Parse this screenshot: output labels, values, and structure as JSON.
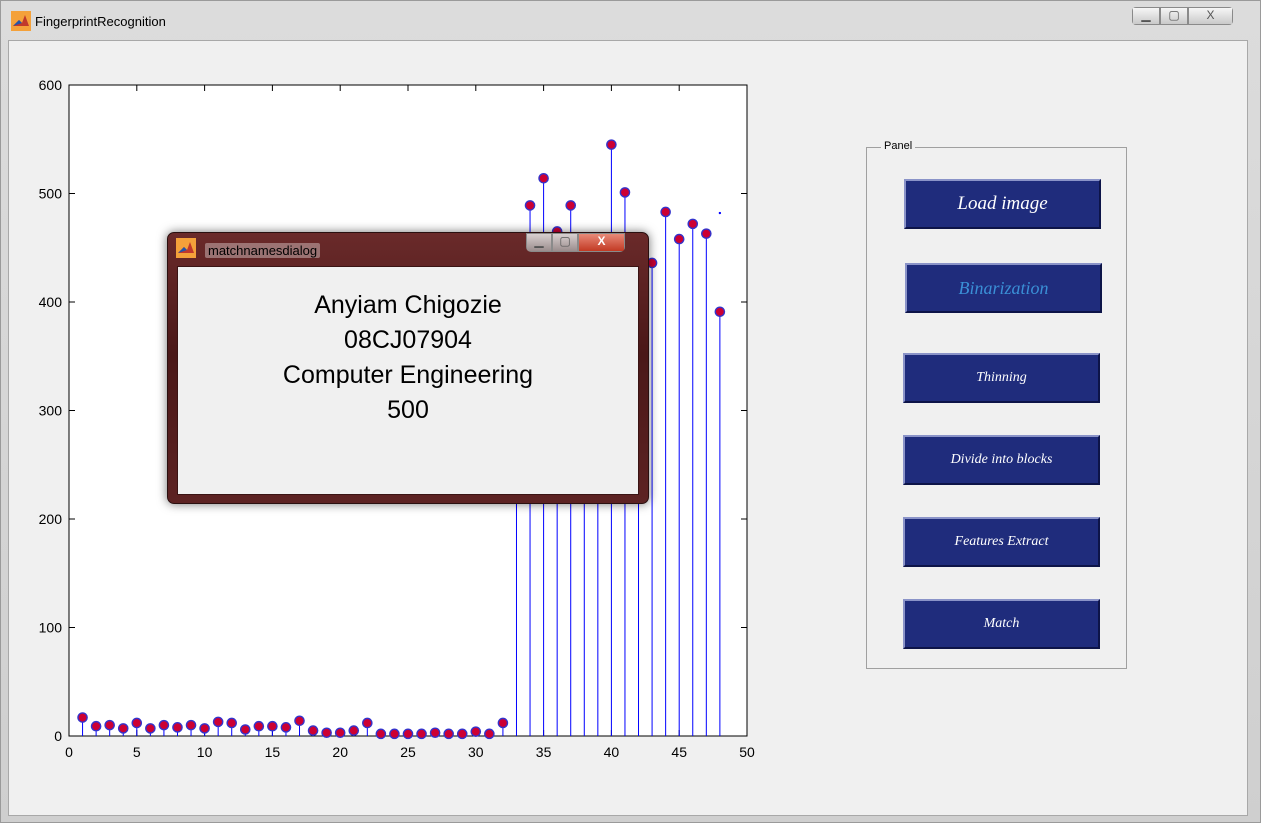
{
  "window": {
    "title": "FingerprintRecognition",
    "caption_buttons": {
      "minimize": "▁",
      "maximize": "▢",
      "close": "X"
    }
  },
  "chart_data": {
    "type": "stem",
    "x": [
      1,
      2,
      3,
      4,
      5,
      6,
      7,
      8,
      9,
      10,
      11,
      12,
      13,
      14,
      15,
      16,
      17,
      18,
      19,
      20,
      21,
      22,
      23,
      24,
      25,
      26,
      27,
      28,
      29,
      30,
      31,
      32,
      33,
      34,
      35,
      36,
      37,
      38,
      39,
      40,
      41,
      42,
      43,
      44,
      45,
      46,
      47,
      48
    ],
    "values": [
      17,
      9,
      10,
      7,
      12,
      7,
      10,
      8,
      10,
      7,
      13,
      12,
      6,
      9,
      9,
      8,
      14,
      5,
      3,
      3,
      5,
      12,
      2,
      2,
      2,
      2,
      3,
      2,
      2,
      4,
      2,
      12,
      408,
      489,
      514,
      465,
      489,
      440,
      425,
      545,
      501,
      440,
      436,
      483,
      458,
      472,
      463,
      391
    ],
    "xlim": [
      0,
      50
    ],
    "ylim": [
      0,
      600
    ],
    "xticks": [
      "0",
      "5",
      "10",
      "15",
      "20",
      "25",
      "30",
      "35",
      "40",
      "45",
      "50"
    ],
    "yticks": [
      "0",
      "100",
      "200",
      "300",
      "400",
      "500",
      "600"
    ],
    "stem_color": "#0000ff",
    "marker_face": "#cc0033",
    "marker_edge": "#3333cc",
    "stray_point": {
      "x": 48,
      "y": 482
    }
  },
  "panel": {
    "title": "Panel",
    "buttons": [
      {
        "label": "Load image",
        "color": "#ffffff",
        "size": 19
      },
      {
        "label": "Binarization",
        "color": "#3a8fd6",
        "size": 18
      },
      {
        "label": "Thinning",
        "color": "#ffffff",
        "size": 14
      },
      {
        "label": "Divide into blocks",
        "color": "#ffffff",
        "size": 14
      },
      {
        "label": "Features Extract",
        "color": "#ffffff",
        "size": 14
      },
      {
        "label": "Match",
        "color": "#ffffff",
        "size": 14
      }
    ]
  },
  "dialog": {
    "title": "matchnamesdialog",
    "lines": [
      "Anyiam Chigozie",
      "08CJ07904",
      "Computer Engineering",
      "500"
    ],
    "caption_buttons": {
      "minimize": "▁",
      "maximize": "▢",
      "close": "X"
    }
  }
}
